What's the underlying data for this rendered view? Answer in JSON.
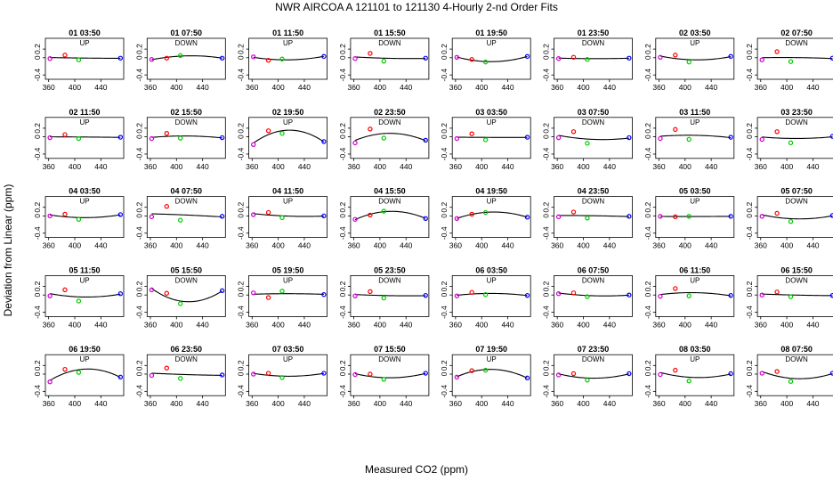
{
  "chart_data": {
    "type": "scatter",
    "title": "NWR   AIRCOA A   121101 to 121130   4-Hourly 2-nd Order Fits",
    "xlabel": "Measured CO2 (ppm)",
    "ylabel": "Deviation from Linear (ppm)",
    "xlim": [
      355,
      475
    ],
    "ylim": [
      -0.5,
      0.45
    ],
    "x_ticks": [
      360,
      400,
      440
    ],
    "y_ticks": [
      -0.4,
      0,
      0.2
    ],
    "x_tick_labels": [
      "360",
      "400",
      "440"
    ],
    "y_tick_labels": [
      "-0.4",
      "0",
      "0.2"
    ],
    "colors": {
      "s1": "#d000d0",
      "s2": "#ff0000",
      "s3": "#00cc00",
      "s4": "#0000ff",
      "fit": "#000000"
    },
    "x_standards": [
      362,
      385,
      406,
      470
    ],
    "panels": [
      {
        "label": "01 03:50",
        "dir": "UP",
        "d": [
          -0.02,
          0.06,
          -0.05,
          -0.01
        ]
      },
      {
        "label": "01 07:50",
        "dir": "DOWN",
        "d": [
          -0.04,
          -0.01,
          0.05,
          -0.01
        ]
      },
      {
        "label": "01 11:50",
        "dir": "UP",
        "d": [
          0.02,
          -0.06,
          -0.03,
          0.03
        ]
      },
      {
        "label": "01 15:50",
        "dir": "DOWN",
        "d": [
          -0.02,
          0.1,
          -0.08,
          -0.01
        ]
      },
      {
        "label": "01 19:50",
        "dir": "UP",
        "d": [
          0.01,
          -0.04,
          -0.1,
          0.03
        ]
      },
      {
        "label": "01 23:50",
        "dir": "DOWN",
        "d": [
          -0.02,
          0.01,
          -0.04,
          -0.01
        ]
      },
      {
        "label": "02 03:50",
        "dir": "UP",
        "d": [
          0.01,
          0.06,
          -0.1,
          0.03
        ]
      },
      {
        "label": "02 07:50",
        "dir": "DOWN",
        "d": [
          -0.05,
          0.14,
          -0.09,
          -0.01
        ]
      },
      {
        "label": "02 11:50",
        "dir": "UP",
        "d": [
          -0.02,
          0.05,
          -0.04,
          -0.01
        ]
      },
      {
        "label": "02 15:50",
        "dir": "DOWN",
        "d": [
          -0.04,
          0.08,
          -0.03,
          -0.02
        ]
      },
      {
        "label": "02 19:50",
        "dir": "UP",
        "d": [
          -0.18,
          0.14,
          0.08,
          -0.11
        ]
      },
      {
        "label": "02 23:50",
        "dir": "DOWN",
        "d": [
          -0.14,
          0.18,
          -0.03,
          -0.08
        ]
      },
      {
        "label": "03 03:50",
        "dir": "UP",
        "d": [
          -0.04,
          0.07,
          -0.07,
          -0.01
        ]
      },
      {
        "label": "03 07:50",
        "dir": "DOWN",
        "d": [
          -0.02,
          0.12,
          -0.15,
          -0.02
        ]
      },
      {
        "label": "03 11:50",
        "dir": "UP",
        "d": [
          -0.04,
          0.17,
          -0.06,
          -0.01
        ]
      },
      {
        "label": "03 23:50",
        "dir": "DOWN",
        "d": [
          -0.06,
          0.12,
          -0.14,
          0.01
        ]
      },
      {
        "label": "04 03:50",
        "dir": "UP",
        "d": [
          0.0,
          0.04,
          -0.08,
          0.03
        ]
      },
      {
        "label": "04 07:50",
        "dir": "DOWN",
        "d": [
          -0.02,
          0.22,
          -0.1,
          -0.01
        ]
      },
      {
        "label": "04 11:50",
        "dir": "UP",
        "d": [
          0.03,
          0.08,
          -0.04,
          0.0
        ]
      },
      {
        "label": "04 15:50",
        "dir": "DOWN",
        "d": [
          -0.08,
          0.02,
          0.11,
          -0.06
        ]
      },
      {
        "label": "04 19:50",
        "dir": "UP",
        "d": [
          -0.06,
          0.04,
          0.08,
          -0.03
        ]
      },
      {
        "label": "04 23:50",
        "dir": "DOWN",
        "d": [
          -0.02,
          0.09,
          -0.05,
          -0.01
        ]
      },
      {
        "label": "05 03:50",
        "dir": "UP",
        "d": [
          -0.01,
          -0.02,
          -0.01,
          -0.01
        ]
      },
      {
        "label": "05 07:50",
        "dir": "DOWN",
        "d": [
          -0.01,
          0.06,
          -0.13,
          0.01
        ]
      },
      {
        "label": "05 11:50",
        "dir": "UP",
        "d": [
          -0.02,
          0.12,
          -0.14,
          0.03
        ]
      },
      {
        "label": "05 15:50",
        "dir": "DOWN",
        "d": [
          0.12,
          0.04,
          -0.2,
          0.1
        ]
      },
      {
        "label": "05 19:50",
        "dir": "UP",
        "d": [
          0.05,
          -0.06,
          0.09,
          0.01
        ]
      },
      {
        "label": "05 23:50",
        "dir": "DOWN",
        "d": [
          -0.02,
          0.08,
          -0.07,
          -0.01
        ]
      },
      {
        "label": "06 03:50",
        "dir": "UP",
        "d": [
          -0.02,
          0.06,
          0.01,
          -0.01
        ]
      },
      {
        "label": "06 07:50",
        "dir": "DOWN",
        "d": [
          0.03,
          0.05,
          -0.04,
          0.0
        ]
      },
      {
        "label": "06 11:50",
        "dir": "UP",
        "d": [
          -0.03,
          0.15,
          -0.02,
          -0.01
        ]
      },
      {
        "label": "06 15:50",
        "dir": "DOWN",
        "d": [
          0.0,
          0.07,
          -0.04,
          -0.01
        ]
      },
      {
        "label": "06 19:50",
        "dir": "UP",
        "d": [
          -0.18,
          0.11,
          0.04,
          -0.07
        ]
      },
      {
        "label": "06 23:50",
        "dir": "DOWN",
        "d": [
          -0.03,
          0.14,
          -0.1,
          -0.02
        ]
      },
      {
        "label": "07 03:50",
        "dir": "UP",
        "d": [
          0.0,
          0.02,
          -0.08,
          0.02
        ]
      },
      {
        "label": "07 15:50",
        "dir": "DOWN",
        "d": [
          -0.01,
          0.0,
          -0.12,
          0.02
        ]
      },
      {
        "label": "07 19:50",
        "dir": "UP",
        "d": [
          -0.07,
          0.08,
          0.09,
          -0.09
        ]
      },
      {
        "label": "07 23:50",
        "dir": "DOWN",
        "d": [
          -0.02,
          0.01,
          -0.14,
          0.01
        ]
      },
      {
        "label": "08 03:50",
        "dir": "UP",
        "d": [
          -0.01,
          0.09,
          -0.16,
          0.01
        ]
      },
      {
        "label": "08 07:50",
        "dir": "DOWN",
        "d": [
          0.02,
          0.06,
          -0.17,
          0.02
        ]
      }
    ]
  }
}
